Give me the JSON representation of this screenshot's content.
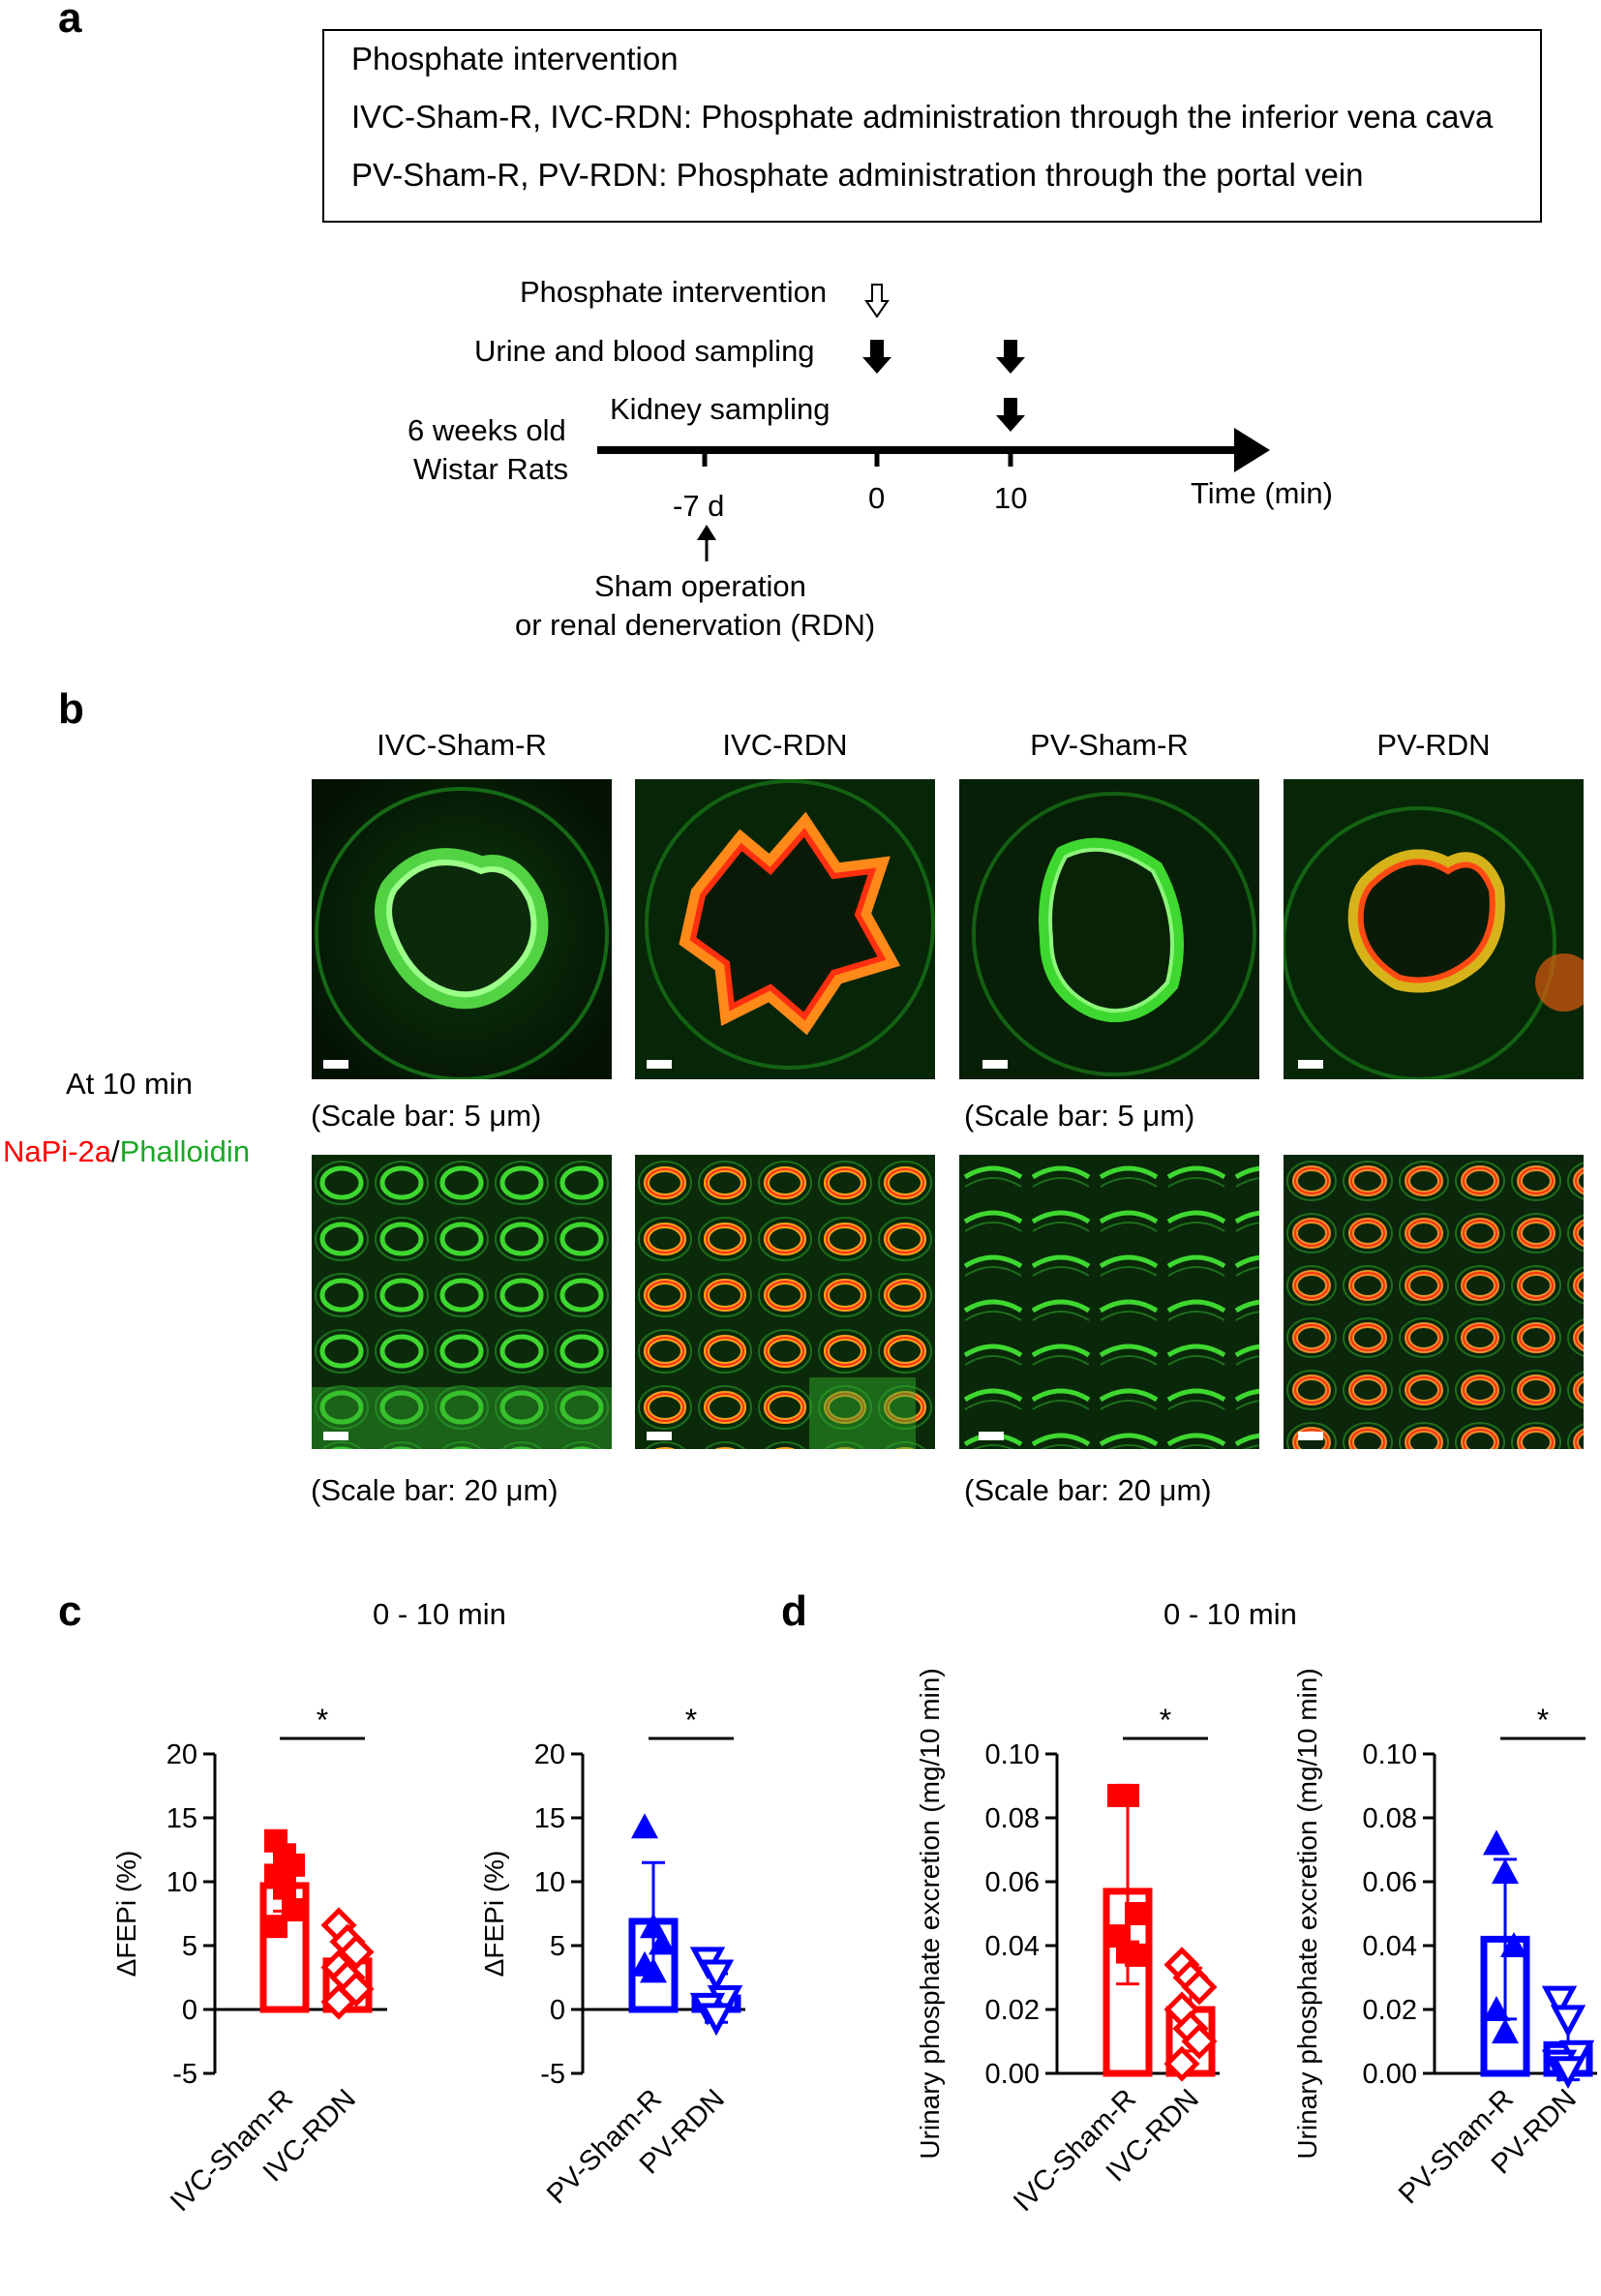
{
  "panels": {
    "a": "a",
    "b": "b",
    "c": "c",
    "d": "d"
  },
  "protocol": {
    "title": "Phosphate intervention",
    "line1": "IVC-Sham-R, IVC-RDN: Phosphate administration through the inferior vena cava",
    "line2": "PV-Sham-R, PV-RDN: Phosphate administration through the portal vein"
  },
  "timeline": {
    "phosphate_intervention": "Phosphate intervention",
    "urine_blood": "Urine and blood  sampling",
    "kidney": "Kidney sampling",
    "rats_line1": "6 weeks old",
    "rats_line2": "Wistar Rats",
    "tick_minus7": "-7 d",
    "tick_0": "0",
    "tick_10": "10",
    "time_label": "Time (min)",
    "sham_line1": "Sham operation",
    "sham_line2": "or renal denervation (RDN)"
  },
  "micrographs": {
    "columns": [
      "IVC-Sham-R",
      "IVC-RDN",
      "PV-Sham-R",
      "PV-RDN"
    ],
    "time": "At 10 min",
    "stain_red": "NaPi-2a",
    "stain_sep": "/",
    "stain_green": "Phalloidin",
    "scale_small_left": "(Scale bar: 5 μm)",
    "scale_small_right": "(Scale bar: 5 μm)",
    "scale_large_left": "(Scale bar: 20 μm)",
    "scale_large_right": "(Scale bar: 20 μm)",
    "colors": {
      "green": "#37c82a",
      "orange": "#ff8a1a",
      "red": "#ff3010"
    }
  },
  "headers": {
    "c": "0 - 10 min",
    "d": "0 - 10 min"
  },
  "chart_data": [
    {
      "type": "bar",
      "panel": "c",
      "ylabel": "ΔFEPi (%)",
      "ylim": [
        -5,
        20
      ],
      "yticks": [
        "20",
        "15",
        "10",
        "5",
        "0",
        "-5"
      ],
      "categories": [
        "IVC-Sham-R",
        "IVC-RDN"
      ],
      "means": [
        9.7,
        3.8
      ],
      "sd": [
        2.0,
        1.7
      ],
      "points": [
        [
          13.2,
          12.1,
          11.3,
          10.5,
          9.5,
          7.8,
          6.5
        ],
        [
          6.6,
          5.3,
          4.5,
          3.3,
          2.5,
          1.6,
          0.6
        ]
      ],
      "significance": "*",
      "color": "#ff0000"
    },
    {
      "type": "bar",
      "panel": "c",
      "ylabel": "ΔFEPi (%)",
      "ylim": [
        -5,
        20
      ],
      "yticks": [
        "20",
        "15",
        "10",
        "5",
        "0",
        "-5"
      ],
      "categories": [
        "PV-Sham-R",
        "PV-RDN"
      ],
      "means": [
        6.9,
        0.9
      ],
      "sd": [
        4.6,
        1.9
      ],
      "points": [
        [
          14.3,
          6.5,
          5.2,
          3.5,
          3.0
        ],
        [
          3.8,
          2.8,
          0.8,
          0.2,
          -0.6
        ]
      ],
      "significance": "*",
      "color": "#0000ff"
    },
    {
      "type": "bar",
      "panel": "d",
      "ylabel": "Urinary phosphate excretion (mg/10 min)",
      "ylim": [
        0,
        0.1
      ],
      "yticks": [
        "0.10",
        "0.08",
        "0.06",
        "0.04",
        "0.02",
        "0.00"
      ],
      "categories": [
        "IVC-Sham-R",
        "IVC-RDN"
      ],
      "means": [
        0.057,
        0.02
      ],
      "sd": [
        0.029,
        0.013
      ],
      "points": [
        [
          0.087,
          0.087,
          0.05,
          0.043,
          0.038,
          0.037
        ],
        [
          0.034,
          0.03,
          0.027,
          0.02,
          0.014,
          0.01,
          0.003
        ]
      ],
      "significance": "*",
      "color": "#ff0000"
    },
    {
      "type": "bar",
      "panel": "d",
      "ylabel": "Urinary phosphate excretion (mg/10 min)",
      "ylim": [
        0,
        0.1
      ],
      "yticks": [
        "0.10",
        "0.08",
        "0.06",
        "0.04",
        "0.02",
        "0.00"
      ],
      "categories": [
        "PV-Sham-R",
        "PV-RDN"
      ],
      "means": [
        0.042,
        0.009
      ],
      "sd": [
        0.025,
        0.011
      ],
      "points": [
        [
          0.072,
          0.063,
          0.04,
          0.02,
          0.013
        ],
        [
          0.023,
          0.017,
          0.006,
          0.003,
          0.001
        ]
      ],
      "significance": "*",
      "color": "#0000ff"
    }
  ]
}
